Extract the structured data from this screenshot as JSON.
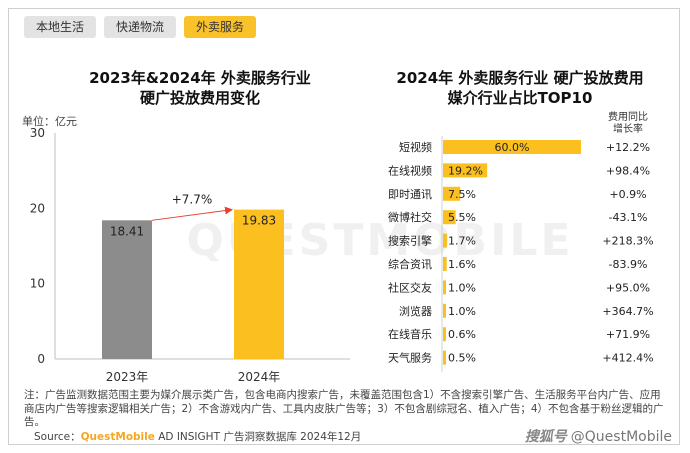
{
  "tabs": [
    {
      "label": "本地生活",
      "active": false
    },
    {
      "label": "快递物流",
      "active": false
    },
    {
      "label": "外卖服务",
      "active": true
    }
  ],
  "left_title_line1": "2023年&2024年 外卖服务行业",
  "left_title_line2": "硬广投放费用变化",
  "unit_label": "单位：亿元",
  "right_title_line1": "2024年 外卖服务行业 硬广投放费用",
  "right_title_line2": "媒介行业占比TOP10",
  "growth_header_line1": "费用同比",
  "growth_header_line2": "增长率",
  "watermark": "QUESTMOBILE",
  "footnote": "注：广告监测数据范围主要为媒介展示类广告，包含电商内搜索广告，未覆盖范围包含1）不含搜索引擎广告、生活服务平台内广告、应用商店内广告等搜索逻辑相关广告；2）不含游戏内广告、工具内皮肤广告等；3）不包含剧综冠名、植入广告；4）不包含基于粉丝逻辑的广告。",
  "source_prefix": "Source：",
  "source_brand": "QuestMobile",
  "source_rest": " AD INSIGHT 广告洞察数据库 2024年12月",
  "bottom_watermark_logo": "搜狐号",
  "bottom_watermark_text": "@QuestMobile",
  "colors": {
    "bar_2023": "#8c8c8c",
    "bar_2024": "#fbbf1f",
    "hbar": "#fbbf1f",
    "arrow": "#e8402f",
    "tab_active": "#f9c22b"
  },
  "chart_data": [
    {
      "type": "bar",
      "title": "2023年&2024年 外卖服务行业 硬广投放费用变化",
      "ylabel": "单位：亿元",
      "categories": [
        "2023年",
        "2024年"
      ],
      "values": [
        18.41,
        19.83
      ],
      "ylim": [
        0,
        30
      ],
      "yticks": [
        0,
        10,
        20,
        30
      ],
      "annotation": "+7.7%"
    },
    {
      "type": "bar",
      "orientation": "horizontal",
      "title": "2024年 外卖服务行业 硬广投放费用媒介行业占比TOP10",
      "categories": [
        "短视频",
        "在线视频",
        "即时通讯",
        "微博社交",
        "搜索引擎",
        "综合资讯",
        "社区交友",
        "浏览器",
        "在线音乐",
        "天气服务"
      ],
      "values": [
        60.0,
        19.2,
        7.5,
        5.5,
        1.7,
        1.6,
        1.0,
        1.0,
        0.6,
        0.5
      ],
      "value_labels": [
        "60.0%",
        "19.2%",
        "7.5%",
        "5.5%",
        "1.7%",
        "1.6%",
        "1.0%",
        "1.0%",
        "0.6%",
        "0.5%"
      ],
      "growth": [
        "+12.2%",
        "+98.4%",
        "+0.9%",
        "-43.1%",
        "+218.3%",
        "-83.9%",
        "+95.0%",
        "+364.7%",
        "+71.9%",
        "+412.4%"
      ]
    }
  ]
}
